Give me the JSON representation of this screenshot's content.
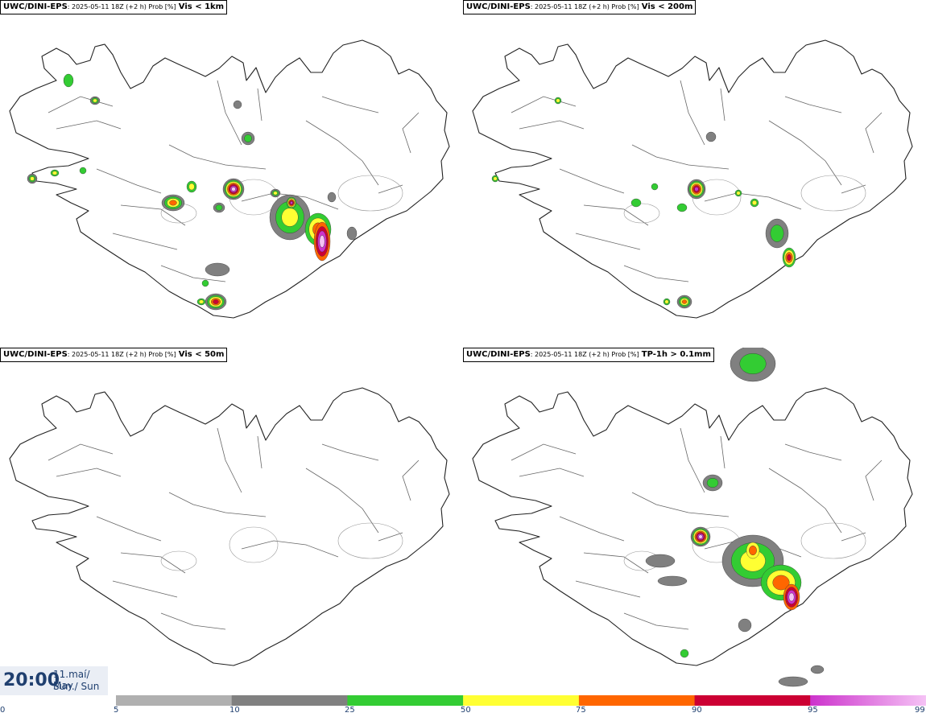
{
  "panels": [
    {
      "model": "UWC/DINI-EPS",
      "subtitle": ": 2025-05-11 18Z (+2 h) Prob [%]",
      "variable": "Vis < 1km"
    },
    {
      "model": "UWC/DINI-EPS",
      "subtitle": ": 2025-05-11 18Z (+2 h) Prob [%]",
      "variable": "Vis < 200m"
    },
    {
      "model": "UWC/DINI-EPS",
      "subtitle": ": 2025-05-11 18Z (+2 h) Prob [%]",
      "variable": "Vis < 50m"
    },
    {
      "model": "UWC/DINI-EPS",
      "subtitle": ": 2025-05-11 18Z (+2 h) Prob [%]",
      "variable": "TP-1h > 0.1mm"
    }
  ],
  "time": {
    "hour": "20:00",
    "date_line1": "11.maí/ May",
    "date_line2": "Sun./ Sun"
  },
  "colorbar": {
    "ticks": [
      "0",
      "5",
      "10",
      "25",
      "50",
      "75",
      "90",
      "95",
      "99"
    ],
    "classes": [
      {
        "from": 5,
        "to": 10,
        "color": "#b0b0b0"
      },
      {
        "from": 10,
        "to": 25,
        "color": "#808080"
      },
      {
        "from": 25,
        "to": 50,
        "color": "#33cc33"
      },
      {
        "from": 50,
        "to": 75,
        "color": "#ffff33"
      },
      {
        "from": 75,
        "to": 90,
        "color": "#ff6600"
      },
      {
        "from": 90,
        "to": 95,
        "color": "#cc0033"
      },
      {
        "from": 95,
        "to": 99,
        "color": "#cc33cc"
      },
      {
        "from": 99,
        "to": 100,
        "color": "#f5c2f5"
      }
    ]
  }
}
